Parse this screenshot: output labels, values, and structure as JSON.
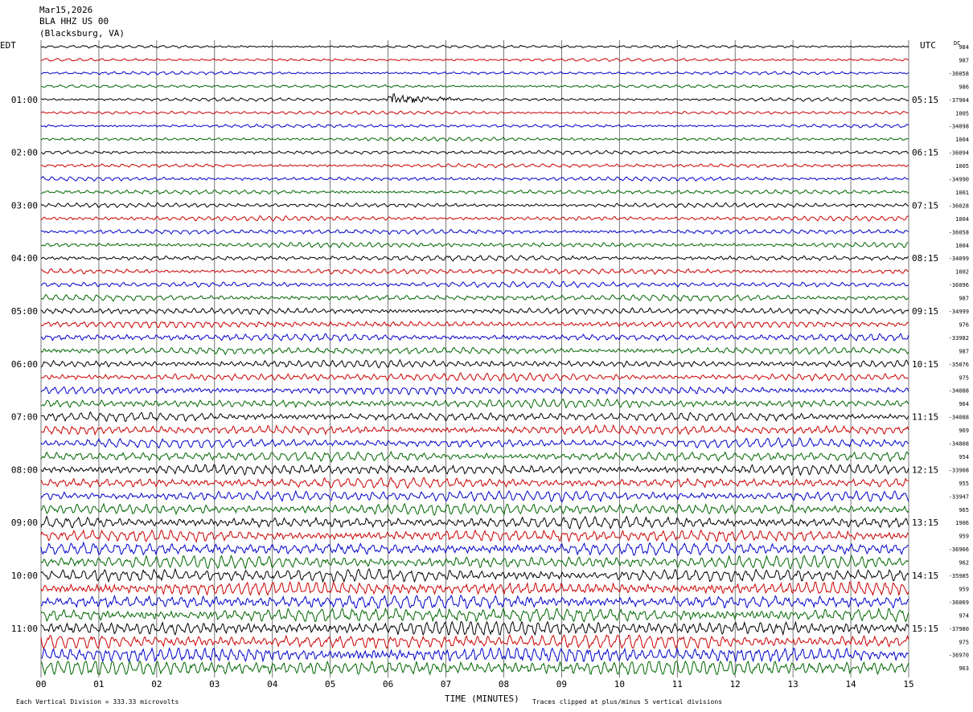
{
  "header": {
    "date": "Mar15,2026",
    "station": "BLA HHZ US 00",
    "location": "(Blacksburg, VA)"
  },
  "left_zone_label": "EDT",
  "right_zone_label": "UTC",
  "dc_label": "DC",
  "footer": {
    "scale_text": "Each Vertical Division =  333.33 microvolts",
    "clip_text": "Traces clipped at plus/minus 5 vertical divisions"
  },
  "colors": {
    "trace_cycle": [
      "#000000",
      "#cc0000",
      "#0000cc",
      "#006600"
    ],
    "grid": "#555555",
    "background": "#ffffff"
  },
  "chart_data": {
    "type": "line",
    "title": "",
    "xlabel": "TIME (MINUTES)",
    "ylabel": "",
    "xlim": [
      0,
      15
    ],
    "x_ticks": [
      "00",
      "01",
      "02",
      "03",
      "04",
      "05",
      "06",
      "07",
      "08",
      "09",
      "10",
      "11",
      "12",
      "13",
      "14",
      "15"
    ],
    "grid": "vertical",
    "left_time_labels": [
      "01:00",
      "02:00",
      "03:00",
      "04:00",
      "05:00",
      "06:00",
      "07:00",
      "08:00",
      "09:00",
      "10:00",
      "11:00"
    ],
    "right_time_labels": [
      "05:15",
      "06:15",
      "07:15",
      "08:15",
      "09:15",
      "10:15",
      "11:15",
      "12:15",
      "13:15",
      "14:15",
      "15:15"
    ],
    "dc_offsets": [
      "984",
      "987",
      "-36058",
      "986",
      "-37904",
      "1005",
      "-34098",
      "1004",
      "-36094",
      "1005",
      "-34990",
      "1001",
      "-36028",
      "1004",
      "-36058",
      "1004",
      "-34099",
      "1002",
      "-36096",
      "987",
      "-34999",
      "976",
      "-33982",
      "987",
      "-35076",
      "975",
      "-34088",
      "964",
      "-34088",
      "969",
      "-34808",
      "954",
      "-33908",
      "955",
      "-33947",
      "965",
      "1906",
      "959",
      "-36966",
      "962",
      "-35985",
      "959",
      "-36069",
      "974",
      "-37980",
      "975",
      "-36970",
      "963"
    ],
    "traces_per_hour": 4,
    "minutes_per_trace": 15,
    "event": {
      "trace": 4,
      "start_minute": 6.0,
      "end_minute": 8.3
    }
  }
}
